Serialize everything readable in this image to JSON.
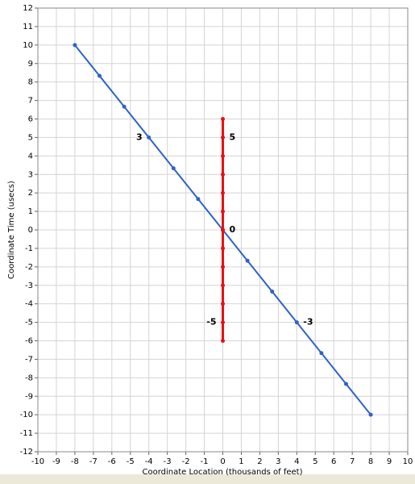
{
  "chart_data": {
    "type": "line",
    "xlabel": "Coordinate Location (thousands of feet)",
    "ylabel": "Coordinate Time (usecs)",
    "xlim": [
      -10,
      10
    ],
    "xticks": [
      -10,
      -9,
      -8,
      -7,
      -6,
      -5,
      -4,
      -3,
      -2,
      -1,
      0,
      1,
      2,
      3,
      4,
      5,
      6,
      7,
      8,
      9,
      10
    ],
    "ylim": [
      -12,
      12
    ],
    "yticks": [
      -12,
      -11,
      -10,
      -9,
      -8,
      -7,
      -6,
      -5,
      -4,
      -3,
      -2,
      -1,
      0,
      1,
      2,
      3,
      4,
      5,
      6,
      7,
      8,
      9,
      10,
      11,
      12
    ],
    "grid": true,
    "series": [
      {
        "color": "#2f62c8",
        "x": [
          -8,
          -6.667,
          -5.333,
          -4,
          -2.667,
          -1.333,
          0,
          1.333,
          2.667,
          4,
          5.333,
          6.667,
          8
        ],
        "values": [
          10,
          8.333,
          6.667,
          5,
          3.333,
          1.667,
          0,
          -1.667,
          -3.333,
          -5,
          -6.667,
          -8.333,
          -10
        ]
      },
      {
        "color": "#e81010",
        "x": [
          0,
          0,
          0,
          0,
          0,
          0,
          0,
          0,
          0,
          0,
          0,
          0,
          0
        ],
        "values": [
          -6,
          -5,
          -4,
          -3,
          -2,
          -1,
          0,
          1,
          2,
          3,
          4,
          5,
          6
        ]
      }
    ],
    "annotations": [
      {
        "text": "3",
        "x": -4,
        "y": 5,
        "side": "left"
      },
      {
        "text": "5",
        "x": 0,
        "y": 5,
        "side": "right"
      },
      {
        "text": "0",
        "x": 0,
        "y": 0,
        "side": "right"
      },
      {
        "text": "-5",
        "x": 0,
        "y": -5,
        "side": "left"
      },
      {
        "text": "-3",
        "x": 4,
        "y": -5,
        "side": "right"
      }
    ]
  }
}
